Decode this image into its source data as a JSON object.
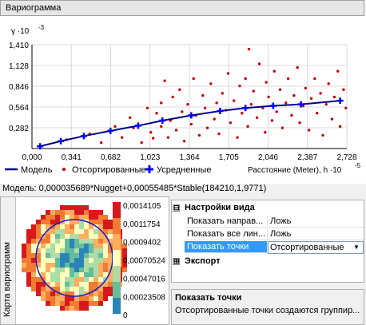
{
  "header": {
    "title": "Вариограмма"
  },
  "chart_data": {
    "type": "scatter",
    "y_scale_label": "γ ·10",
    "y_scale_exp": "-3",
    "x_scale_exp": "-5",
    "xlabel": "Расстояние (Meter), h ·10",
    "x_ticks": [
      "0,000",
      "0,341",
      "0,682",
      "1,023",
      "1,364",
      "1,705",
      "2,046",
      "2,387",
      "2,728"
    ],
    "y_ticks": [
      "0,282",
      "0,564",
      "0,846",
      "1,128",
      "1,410"
    ],
    "xlim": [
      0,
      2.728
    ],
    "ylim": [
      0,
      1.41
    ],
    "legend": {
      "model": "Модель",
      "sorted": "Отсортированные",
      "averaged": "Усредненные"
    },
    "colors": {
      "model": "#00008b",
      "sorted": "#cc0000",
      "averaged": "#0000ff"
    },
    "averaged_points": [
      [
        0.07,
        0.03
      ],
      [
        0.25,
        0.1
      ],
      [
        0.45,
        0.17
      ],
      [
        0.68,
        0.24
      ],
      [
        0.92,
        0.31
      ],
      [
        1.13,
        0.38
      ],
      [
        1.38,
        0.45
      ],
      [
        1.63,
        0.51
      ],
      [
        1.85,
        0.55
      ],
      [
        2.09,
        0.58
      ],
      [
        2.33,
        0.6
      ],
      [
        2.67,
        0.65
      ]
    ],
    "sorted_points": [
      [
        0.85,
        0.42
      ],
      [
        0.95,
        0.08
      ],
      [
        1.0,
        0.55
      ],
      [
        1.03,
        0.22
      ],
      [
        1.05,
        0.14
      ],
      [
        1.08,
        0.48
      ],
      [
        1.12,
        0.3
      ],
      [
        1.12,
        0.62
      ],
      [
        1.15,
        0.92
      ],
      [
        1.18,
        0.15
      ],
      [
        1.2,
        0.38
      ],
      [
        1.22,
        0.7
      ],
      [
        1.25,
        0.25
      ],
      [
        1.28,
        0.8
      ],
      [
        1.3,
        0.5
      ],
      [
        1.32,
        0.1
      ],
      [
        1.35,
        0.6
      ],
      [
        1.38,
        0.33
      ],
      [
        1.4,
        0.95
      ],
      [
        1.42,
        0.45
      ],
      [
        1.45,
        0.18
      ],
      [
        1.48,
        0.72
      ],
      [
        1.5,
        0.55
      ],
      [
        1.52,
        0.28
      ],
      [
        1.55,
        0.88
      ],
      [
        1.58,
        0.4
      ],
      [
        1.6,
        0.62
      ],
      [
        1.62,
        0.2
      ],
      [
        1.65,
        0.75
      ],
      [
        1.68,
        0.52
      ],
      [
        1.7,
        1.02
      ],
      [
        1.72,
        0.35
      ],
      [
        1.75,
        0.65
      ],
      [
        1.78,
        0.15
      ],
      [
        1.8,
        0.85
      ],
      [
        1.82,
        0.48
      ],
      [
        1.85,
        0.95
      ],
      [
        1.87,
        0.3
      ],
      [
        1.88,
        1.35
      ],
      [
        1.9,
        0.6
      ],
      [
        1.92,
        0.78
      ],
      [
        1.95,
        0.42
      ],
      [
        1.97,
        1.15
      ],
      [
        2.0,
        0.55
      ],
      [
        2.02,
        0.22
      ],
      [
        2.03,
        0.9
      ],
      [
        2.05,
        0.7
      ],
      [
        2.08,
        0.38
      ],
      [
        2.1,
        1.05
      ],
      [
        2.12,
        0.5
      ],
      [
        2.15,
        0.8
      ],
      [
        2.17,
        0.28
      ],
      [
        2.2,
        0.62
      ],
      [
        2.22,
        0.95
      ],
      [
        2.25,
        0.45
      ],
      [
        2.27,
        0.72
      ],
      [
        2.3,
        1.1
      ],
      [
        2.32,
        0.35
      ],
      [
        2.35,
        0.58
      ],
      [
        2.37,
        0.82
      ],
      [
        2.4,
        0.25
      ],
      [
        2.42,
        0.68
      ],
      [
        2.45,
        0.95
      ],
      [
        2.47,
        0.48
      ],
      [
        2.5,
        0.75
      ],
      [
        2.52,
        0.18
      ],
      [
        2.55,
        0.6
      ],
      [
        2.57,
        0.88
      ],
      [
        2.6,
        0.4
      ],
      [
        2.62,
        0.7
      ],
      [
        2.65,
        1.05
      ],
      [
        2.67,
        0.3
      ],
      [
        2.7,
        0.8
      ],
      [
        2.72,
        0.55
      ],
      [
        0.3,
        0.12
      ],
      [
        0.5,
        0.2
      ],
      [
        0.6,
        0.08
      ],
      [
        0.72,
        0.3
      ],
      [
        0.78,
        0.15
      ],
      [
        0.88,
        0.28
      ]
    ]
  },
  "model_formula": "Модель: 0,000035689*Nugget+0,00055485*Stable(184210,1,9771)",
  "map": {
    "tab_label": "Карта вариограмм",
    "legend_values": [
      "0,0014105",
      "0,0011754",
      "0,0009402",
      "0,00070524",
      "0,00047016",
      "0,00023508",
      "0"
    ],
    "legend_colors": [
      "#d7191c",
      "#f07c34",
      "#fdae61",
      "#ffffbf",
      "#abdda4",
      "#66bd9c",
      "#2b83ba"
    ]
  },
  "properties": {
    "cat1": {
      "label": "Настройки вида",
      "toggle": "⊟"
    },
    "rows": [
      {
        "name": "Показать направ...",
        "value": "Ложь"
      },
      {
        "name": "Показать все лин...",
        "value": "Ложь"
      },
      {
        "name": "Показать точки",
        "value": "Отсортированные"
      }
    ],
    "cat2": {
      "label": "Экспорт",
      "toggle": "⊞"
    }
  },
  "description": {
    "title": "Показать точки",
    "text": "Отсортированные точки создаются группир..."
  }
}
